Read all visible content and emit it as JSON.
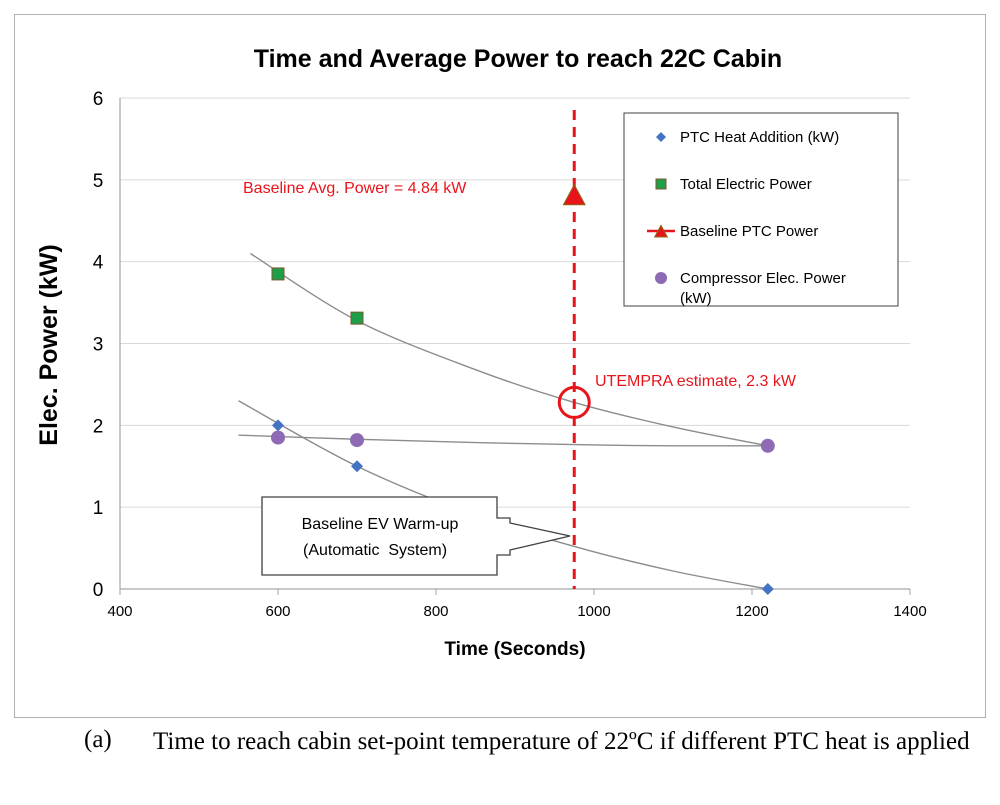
{
  "chart_data": {
    "type": "scatter",
    "title": "Time and Average Power to reach 22C Cabin",
    "xlabel": "Time (Seconds)",
    "ylabel": "Elec. Power (kW)",
    "xlim": [
      400,
      1400
    ],
    "ylim": [
      0,
      6
    ],
    "xticks": [
      400,
      600,
      800,
      1000,
      1200,
      1400
    ],
    "yticks": [
      0,
      1,
      2,
      3,
      4,
      5,
      6
    ],
    "grid": "horizontal",
    "legend_position": "top-right",
    "series": [
      {
        "name": "PTC Heat Addition (kW)",
        "marker": "diamond",
        "color": "#4472C4",
        "x": [
          600,
          700,
          1220
        ],
        "y": [
          2.0,
          1.5,
          0.0
        ]
      },
      {
        "name": "Total Electric Power",
        "marker": "square",
        "color": "#1E9E4A",
        "x": [
          600,
          700
        ],
        "y": [
          3.85,
          3.31
        ]
      },
      {
        "name": "Baseline PTC Power",
        "marker": "triangle",
        "color": "#E8141B",
        "x": [
          975
        ],
        "y": [
          4.8
        ]
      },
      {
        "name": "Compressor Elec. Power (kW)",
        "marker": "circle",
        "color": "#8E6AB4",
        "x": [
          600,
          700,
          1220
        ],
        "y": [
          1.85,
          1.82,
          1.75
        ]
      }
    ],
    "trendlines": [
      {
        "x": [
          565,
          700,
          850,
          975,
          1100,
          1220
        ],
        "y": [
          4.1,
          3.28,
          2.68,
          2.28,
          1.98,
          1.75
        ]
      },
      {
        "x": [
          550,
          700,
          850,
          1000,
          1100,
          1220
        ],
        "y": [
          1.88,
          1.83,
          1.79,
          1.76,
          1.75,
          1.75
        ]
      },
      {
        "x": [
          550,
          700,
          850,
          975,
          1100,
          1220
        ],
        "y": [
          2.3,
          1.5,
          0.9,
          0.52,
          0.22,
          0.0
        ]
      }
    ],
    "vline": {
      "x": 975,
      "color": "#E8141B"
    },
    "annotations": {
      "baseline_avg": "Baseline Avg. Power = 4.84 kW",
      "utempra": "UTEMPRA estimate, 2.3 kW",
      "utempra_point": {
        "x": 975,
        "y": 2.28
      },
      "callout_line1": "Baseline EV Warm-up",
      "callout_line2": "(Automatic  System)"
    },
    "colors": {
      "accent_red": "#E8141B",
      "trend_gray": "#8C8C8C",
      "grid": "#D9D9D9",
      "axis": "#A6A6A6"
    }
  },
  "caption": {
    "label": "(a)",
    "text": "Time to reach cabin set-point temperature of 22ºC if different PTC heat is applied"
  }
}
